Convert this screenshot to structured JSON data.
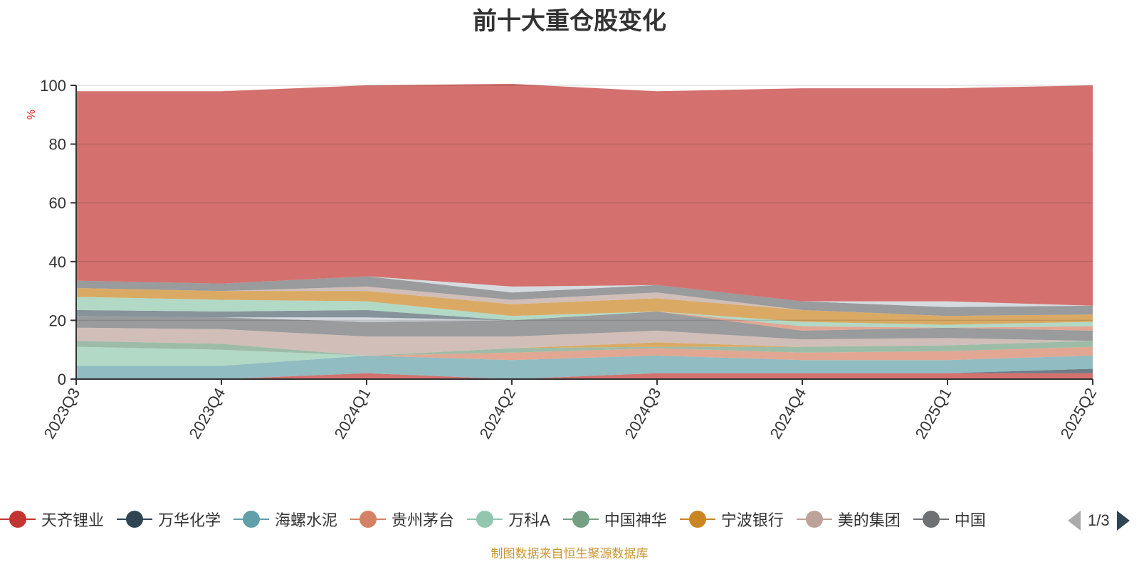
{
  "chart_data": {
    "type": "area",
    "title": "前十大重仓股变化",
    "ylabel": "%",
    "ylim": [
      0,
      100
    ],
    "y_ticks": [
      0,
      20,
      40,
      60,
      80,
      100
    ],
    "grid": true,
    "categories": [
      "2023Q3",
      "2023Q4",
      "2024Q1",
      "2024Q2",
      "2024Q3",
      "2024Q4",
      "2025Q1",
      "2025Q2"
    ],
    "series": [
      {
        "name": "天齐锂业",
        "color": "#c23531",
        "values": [
          0,
          0,
          2,
          0,
          2,
          2,
          2,
          2
        ]
      },
      {
        "name": "万华化学",
        "color": "#2f4554",
        "values": [
          0,
          0,
          0,
          0,
          0,
          0,
          0,
          1.5
        ]
      },
      {
        "name": "海螺水泥",
        "color": "#61a0a8",
        "values": [
          4.5,
          4.5,
          6,
          6.5,
          6,
          4.5,
          4.5,
          4.5
        ]
      },
      {
        "name": "贵州茅台",
        "color": "#d48265",
        "values": [
          0,
          0,
          0,
          2.5,
          2.5,
          2.5,
          3,
          3
        ]
      },
      {
        "name": "万科A",
        "color": "#91c7ae",
        "values": [
          6.5,
          5.5,
          0,
          0,
          0,
          0,
          0,
          0
        ]
      },
      {
        "name": "中国神华",
        "color": "#749f83",
        "values": [
          2,
          2,
          0,
          1.5,
          0.5,
          2,
          2,
          2
        ]
      },
      {
        "name": "宁波银行",
        "color": "#ca8622",
        "values": [
          0,
          0,
          0,
          0,
          1.5,
          0,
          0,
          0
        ]
      },
      {
        "name": "美的集团",
        "color": "#bda29a",
        "values": [
          4.5,
          5,
          6.5,
          4,
          4,
          2.5,
          2.5,
          0
        ]
      },
      {
        "name": "中国",
        "color": "#6e7074",
        "values": [
          4,
          4,
          5,
          5.5,
          6.5,
          3,
          3.5,
          3.5
        ]
      },
      {
        "name": "",
        "color": "#546570",
        "values": [
          0,
          0,
          0,
          0,
          0,
          0,
          0,
          0
        ]
      },
      {
        "name": "",
        "color": "#c4ccd3",
        "values": [
          0,
          0,
          1.5,
          0,
          0,
          0,
          0,
          0
        ]
      },
      {
        "name": "",
        "color": "#546570",
        "values": [
          2,
          2,
          2.5,
          0,
          0,
          0,
          0,
          0
        ]
      },
      {
        "name": "",
        "color": "#d48265",
        "values": [
          0,
          0,
          0,
          0,
          0,
          1.5,
          0,
          1.5
        ]
      },
      {
        "name": "",
        "color": "#91c7ae",
        "values": [
          4.5,
          4,
          3,
          1.5,
          0,
          1.5,
          1,
          1.5
        ]
      },
      {
        "name": "",
        "color": "#ca8622",
        "values": [
          3,
          3,
          3.5,
          4,
          4.5,
          4,
          3,
          2.5
        ]
      },
      {
        "name": "",
        "color": "#bda29a",
        "values": [
          0,
          0,
          1.5,
          1.5,
          2,
          0,
          0,
          0
        ]
      },
      {
        "name": "",
        "color": "#6e7074",
        "values": [
          2.5,
          2.5,
          3.5,
          2.5,
          2.5,
          3,
          3,
          3
        ]
      },
      {
        "name": "",
        "color": "#c4ccd3",
        "values": [
          0,
          0,
          0,
          2,
          0,
          0,
          2,
          0
        ]
      },
      {
        "name": "",
        "color": "#c23531",
        "values": [
          64.5,
          65.5,
          65,
          69,
          66,
          72.5,
          72.5,
          75
        ]
      }
    ],
    "area_opacity": 0.7,
    "source_note": "制图数据来自恒生聚源数据库"
  },
  "legend": {
    "pager_text": "1/3"
  }
}
